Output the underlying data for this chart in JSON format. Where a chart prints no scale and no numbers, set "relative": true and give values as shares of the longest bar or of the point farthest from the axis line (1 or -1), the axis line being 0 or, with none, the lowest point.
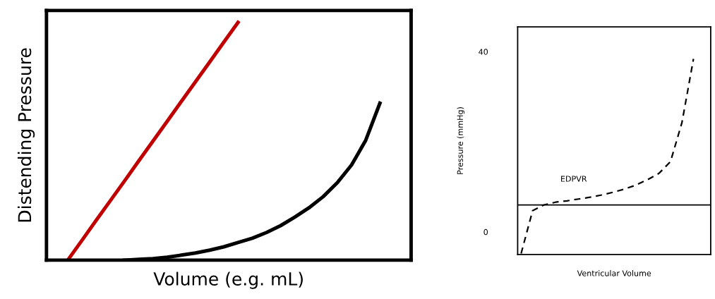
{
  "chart_data": [
    {
      "type": "line",
      "relative": true,
      "xlabel": "Volume (e.g. mL)",
      "ylabel": "Distending Pressure",
      "tick_labels": false,
      "grid": false,
      "legend": false,
      "line_style": "solid",
      "marker": "none",
      "categories": [
        null,
        null,
        null,
        null,
        null,
        null,
        null,
        null,
        null,
        null,
        null,
        null,
        null,
        null,
        null,
        null,
        null,
        null,
        null,
        null,
        null,
        null,
        null
      ],
      "series": [
        {
          "color": "#c00000",
          "values": [
            0,
            0.083,
            0.167,
            0.25,
            0.333,
            0.417,
            0.5,
            0.583,
            0.667,
            0.75,
            0.833,
            0.917,
            1,
            null,
            null,
            null,
            null,
            null,
            null,
            null,
            null,
            null,
            null
          ]
        },
        {
          "color": "#000000",
          "values": [
            null,
            null,
            null,
            null,
            0,
            0.003,
            0.006,
            0.012,
            0.021,
            0.03,
            0.042,
            0.056,
            0.074,
            0.092,
            0.116,
            0.145,
            0.181,
            0.22,
            0.267,
            0.326,
            0.4,
            0.504,
            0.66
          ]
        }
      ]
    },
    {
      "type": "line",
      "xlabel": "Ventricular Volume",
      "ylabel": "Pressure (mmHg)",
      "tick_labels": "y",
      "grid": false,
      "legend": false,
      "line_style": "dashed",
      "marker": "none",
      "ylim": [
        -5,
        45.5
      ],
      "yticks": [
        0,
        40
      ],
      "categories": [
        null,
        null,
        null,
        null,
        null,
        null,
        null,
        null,
        null,
        null,
        null,
        null,
        null,
        null,
        null,
        null
      ],
      "series": [
        {
          "color": "#000000",
          "values": [
            -4.8,
            4.7,
            6.0,
            6.6,
            6.9,
            7.3,
            7.7,
            8.2,
            8.8,
            9.5,
            10.4,
            11.6,
            13.0,
            15.6,
            24.3,
            38.4
          ]
        }
      ],
      "ref_lines": [
        {
          "axis": "y",
          "value": 6,
          "color": "#000000",
          "line_style": "solid"
        }
      ],
      "annotations": [
        "EDPVR"
      ]
    }
  ]
}
